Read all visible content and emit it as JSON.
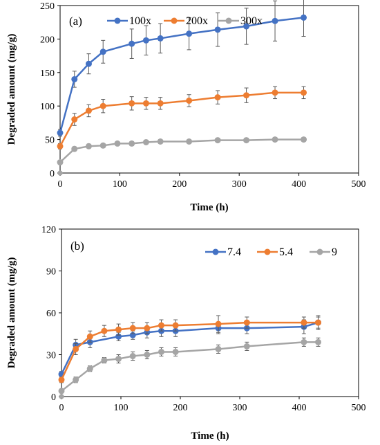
{
  "chart_data": [
    {
      "type": "line",
      "panel_label": "(a)",
      "xlabel": "Time (h)",
      "ylabel": "Degraded amount (mg/g)",
      "xlim": [
        0,
        500
      ],
      "ylim": [
        0,
        250
      ],
      "xticks": [
        0,
        100,
        200,
        300,
        400,
        500
      ],
      "yticks": [
        0,
        50,
        100,
        150,
        200,
        250
      ],
      "legend_position": "top",
      "series": [
        {
          "name": "100x",
          "color": "#4472C4",
          "x": [
            0,
            24,
            48,
            72,
            120,
            144,
            168,
            216,
            264,
            312,
            360,
            408
          ],
          "y": [
            60,
            140,
            163,
            181,
            193,
            198,
            201,
            208,
            214,
            219,
            227,
            232
          ],
          "err": [
            5,
            12,
            15,
            17,
            22,
            22,
            22,
            24,
            25,
            27,
            30,
            28
          ]
        },
        {
          "name": "200x",
          "color": "#ED7D31",
          "x": [
            0,
            24,
            48,
            72,
            120,
            144,
            168,
            216,
            264,
            312,
            360,
            408
          ],
          "y": [
            40,
            80,
            93,
            100,
            104,
            104,
            104,
            108,
            113,
            116,
            120,
            120
          ],
          "err": [
            4,
            9,
            9,
            10,
            10,
            9,
            9,
            9,
            10,
            11,
            9,
            9
          ]
        },
        {
          "name": "300x",
          "color": "#A5A5A5",
          "x": [
            0,
            24,
            48,
            72,
            96,
            120,
            144,
            168,
            216,
            264,
            312,
            360,
            408
          ],
          "y": [
            16,
            36,
            40,
            41,
            44,
            44,
            46,
            47,
            47,
            49,
            49,
            50,
            50
          ],
          "err": [
            2,
            3,
            3,
            3,
            3,
            3,
            3,
            3,
            3,
            3,
            3,
            3,
            3
          ]
        }
      ]
    },
    {
      "type": "line",
      "panel_label": "(b)",
      "xlabel": "Time (h)",
      "ylabel": "Degraded amount (mg/g)",
      "xlim": [
        0,
        500
      ],
      "ylim": [
        0,
        120
      ],
      "xticks": [
        0,
        100,
        200,
        300,
        400,
        500
      ],
      "yticks": [
        0,
        30,
        60,
        90,
        120
      ],
      "legend_position": "top-right",
      "series": [
        {
          "name": "7.4",
          "color": "#4472C4",
          "x": [
            0,
            24,
            48,
            96,
            120,
            144,
            168,
            192,
            264,
            312,
            408,
            432
          ],
          "y": [
            16,
            37,
            39,
            43,
            44,
            46,
            47,
            47,
            49,
            49,
            50,
            53
          ],
          "err": [
            2,
            4,
            4,
            3,
            3,
            4,
            4,
            4,
            4,
            4,
            5,
            5
          ]
        },
        {
          "name": "5.4",
          "color": "#ED7D31",
          "x": [
            0,
            24,
            48,
            72,
            96,
            120,
            144,
            168,
            192,
            264,
            312,
            408,
            432
          ],
          "y": [
            12,
            34,
            43,
            47,
            48,
            49,
            49,
            51,
            51,
            52,
            53,
            53,
            53
          ],
          "err": [
            2,
            4,
            4,
            4,
            4,
            4,
            4,
            4,
            4,
            6,
            4,
            4,
            4
          ]
        },
        {
          "name": "9",
          "color": "#A5A5A5",
          "x": [
            0,
            24,
            48,
            72,
            96,
            120,
            144,
            168,
            192,
            264,
            312,
            408,
            432
          ],
          "y": [
            4,
            12,
            20,
            26,
            27,
            29,
            30,
            32,
            32,
            34,
            36,
            39,
            39
          ],
          "err": [
            1,
            2,
            2,
            2,
            3,
            3,
            3,
            3,
            3,
            3,
            3,
            3,
            3
          ]
        }
      ]
    }
  ]
}
